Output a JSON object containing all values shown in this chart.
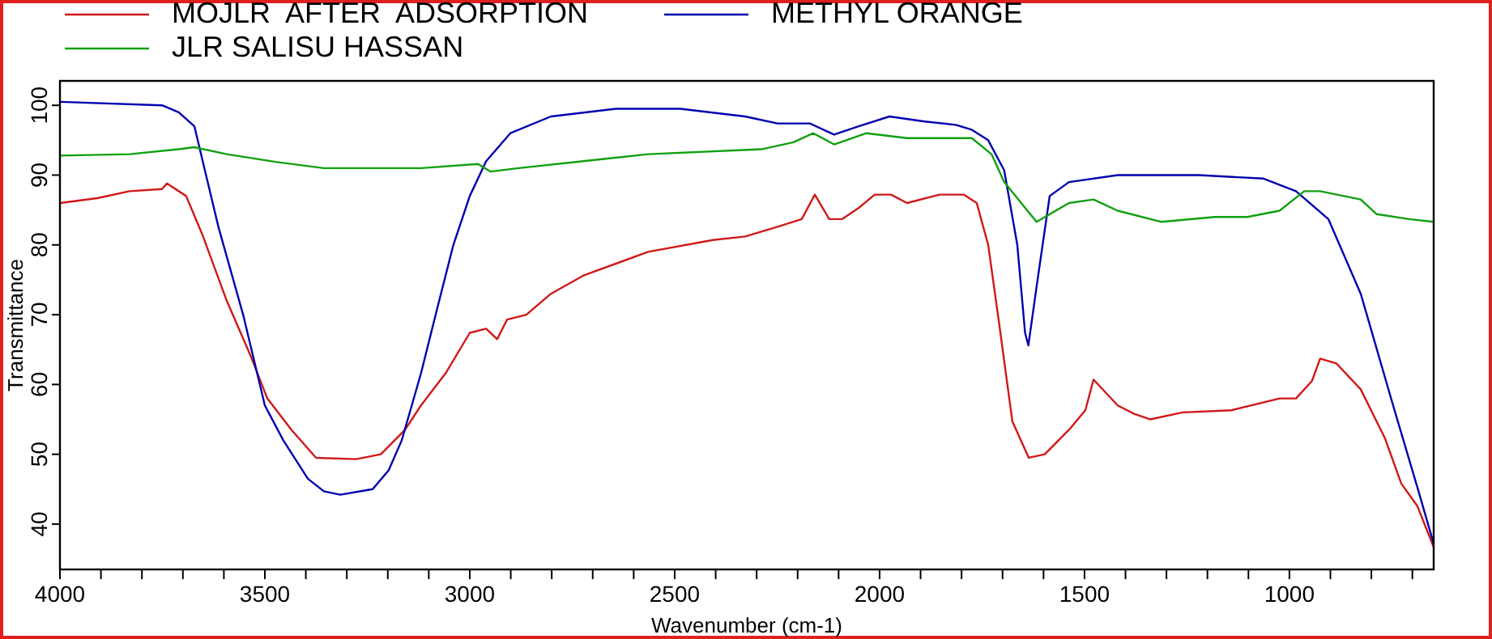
{
  "chart_data": {
    "type": "line",
    "xlabel": "Wavenumber (cm-1)",
    "ylabel": "Transmittance",
    "xlim": [
      4000,
      648
    ],
    "ylim": [
      33.5,
      103.5
    ],
    "xticks": [
      4000,
      {
        "value": 3900,
        "label": null
      },
      {
        "value": 3800,
        "label": null
      },
      {
        "value": 3700,
        "label": null
      },
      {
        "value": 3600,
        "label": null
      },
      3500,
      {
        "value": 3400,
        "label": null
      },
      {
        "value": 3300,
        "label": null
      },
      {
        "value": 3200,
        "label": null
      },
      {
        "value": 3100,
        "label": null
      },
      3000,
      {
        "value": 2900,
        "label": null
      },
      {
        "value": 2800,
        "label": null
      },
      {
        "value": 2700,
        "label": null
      },
      {
        "value": 2600,
        "label": null
      },
      2500,
      {
        "value": 2400,
        "label": null
      },
      {
        "value": 2300,
        "label": null
      },
      {
        "value": 2200,
        "label": null
      },
      {
        "value": 2100,
        "label": null
      },
      2000,
      {
        "value": 1900,
        "label": null
      },
      {
        "value": 1800,
        "label": null
      },
      {
        "value": 1700,
        "label": null
      },
      {
        "value": 1600,
        "label": null
      },
      1500,
      {
        "value": 1400,
        "label": null
      },
      {
        "value": 1300,
        "label": null
      },
      {
        "value": 1200,
        "label": null
      },
      {
        "value": 1100,
        "label": null
      },
      1000,
      {
        "value": 900,
        "label": null
      },
      {
        "value": 800,
        "label": null
      },
      {
        "value": 700,
        "label": null
      }
    ],
    "yticks": [
      40,
      50,
      60,
      70,
      80,
      90,
      100
    ],
    "grid": false,
    "legend": "top",
    "marker": "none",
    "line_style": "solid",
    "series": [
      {
        "name": "MOJLR  AFTER  ADSORPTION",
        "color": "#d01818",
        "x": [
          4000,
          3909,
          3830,
          3751,
          3739,
          3692,
          3652,
          3593,
          3534,
          3494,
          3435,
          3375,
          3277,
          3217,
          3158,
          3119,
          3059,
          3000,
          2960,
          2933,
          2909,
          2862,
          2802,
          2723,
          2565,
          2407,
          2328,
          2249,
          2190,
          2158,
          2123,
          2091,
          2051,
          2012,
          1972,
          1933,
          1854,
          1794,
          1763,
          1735,
          1708,
          1676,
          1636,
          1597,
          1538,
          1498,
          1478,
          1419,
          1379,
          1340,
          1261,
          1142,
          1024,
          984,
          945,
          925,
          885,
          826,
          767,
          727,
          688,
          648
        ],
        "values": [
          86,
          86.7,
          87.7,
          88,
          88.8,
          87,
          81.4,
          72,
          64,
          58,
          53.5,
          49.5,
          49.3,
          50,
          53.5,
          57,
          61.6,
          67.4,
          68,
          66.5,
          69.3,
          70,
          73,
          75.6,
          79,
          80.7,
          81.2,
          82.6,
          83.7,
          87.2,
          83.7,
          83.7,
          85.3,
          87.2,
          87.2,
          86,
          87.2,
          87.2,
          86,
          80,
          68.6,
          54.7,
          49.5,
          50,
          53.5,
          56.3,
          60.7,
          57,
          55.8,
          55,
          56,
          56.3,
          58,
          58,
          60.5,
          63.7,
          63,
          59.3,
          52.3,
          45.8,
          42.6,
          36.7
        ]
      },
      {
        "name": "METHYL ORANGE",
        "color": "#0000b0",
        "x": [
          4000,
          3751,
          3710,
          3672,
          3613,
          3553,
          3500,
          3455,
          3395,
          3356,
          3316,
          3237,
          3198,
          3166,
          3119,
          3079,
          3040,
          3000,
          2960,
          2901,
          2802,
          2644,
          2486,
          2328,
          2249,
          2170,
          2111,
          2051,
          1976,
          1893,
          1814,
          1775,
          1735,
          1696,
          1664,
          1645,
          1637,
          1617,
          1585,
          1538,
          1419,
          1221,
          1063,
          984,
          905,
          826,
          747,
          688,
          648
        ],
        "values": [
          100.5,
          100,
          99,
          97,
          82.5,
          70,
          57,
          52,
          46.5,
          44.7,
          44.2,
          45,
          47.7,
          52,
          61.6,
          71,
          80,
          87,
          92,
          96,
          98.4,
          99.5,
          99.5,
          98.4,
          97.4,
          97.4,
          95.8,
          97,
          98.4,
          97.7,
          97.2,
          96.5,
          95,
          90.7,
          80,
          67.4,
          65.6,
          74,
          87,
          89,
          90,
          90,
          89.5,
          87.7,
          83.7,
          73,
          57,
          45.3,
          37.2
        ]
      },
      {
        "name": "JLR SALISU HASSAN",
        "color": "#10a010",
        "x": [
          4000,
          3830,
          3711,
          3672,
          3593,
          3474,
          3356,
          3119,
          2980,
          2949,
          2881,
          2723,
          2565,
          2289,
          2210,
          2162,
          2111,
          2032,
          1933,
          1775,
          1727,
          1696,
          1617,
          1538,
          1478,
          1419,
          1312,
          1182,
          1103,
          1024,
          964,
          925,
          826,
          787,
          708,
          648
        ],
        "values": [
          92.8,
          93,
          93.7,
          94,
          93,
          91.9,
          91,
          91,
          91.6,
          90.5,
          91,
          92,
          93,
          93.7,
          94.7,
          96,
          94.4,
          96,
          95.3,
          95.3,
          93,
          89,
          83.3,
          86,
          86.5,
          84.9,
          83.3,
          84,
          84,
          84.9,
          87.7,
          87.7,
          86.5,
          84.4,
          83.7,
          83.3
        ]
      }
    ]
  }
}
